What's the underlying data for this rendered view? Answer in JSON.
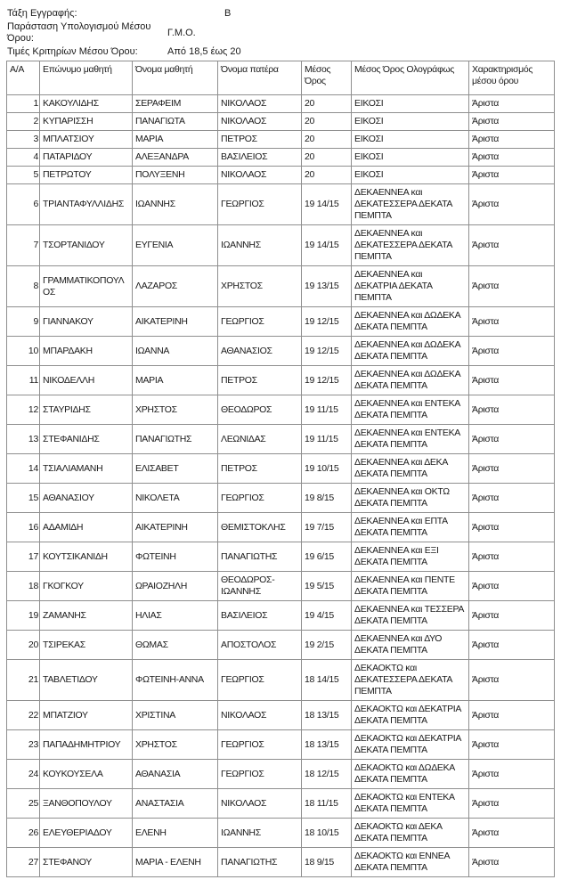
{
  "meta": {
    "registration_class": {
      "label": "Τάξη Εγγραφής:",
      "value": "Β"
    },
    "average_formula": {
      "label": "Παράσταση Υπολογισμού Μέσου Όρου:",
      "value": "Γ.Μ.Ο."
    },
    "criteria_range": {
      "label": "Τιμές Κριτηρίων Μέσου Όρου:",
      "value": "Από 18,5 έως 20"
    }
  },
  "table": {
    "columns": [
      "Α/Α",
      "Επώνυμο μαθητή",
      "Όνομα μαθητή",
      "Όνομα πατέρα",
      "Μέσος Όρος",
      "Μέσος Όρος Ολογράφως",
      "Χαρακτηρισμός μέσου όρου"
    ],
    "rows": [
      [
        "1",
        "ΚΑΚΟΥΛΙΔΗΣ",
        "ΣΕΡΑΦΕΙΜ",
        "ΝΙΚΟΛΑΟΣ",
        "20",
        "ΕΙΚΟΣΙ",
        "Άριστα"
      ],
      [
        "2",
        "ΚΥΠΑΡΙΣΣΗ",
        "ΠΑΝΑΓΙΩΤΑ",
        "ΝΙΚΟΛΑΟΣ",
        "20",
        "ΕΙΚΟΣΙ",
        "Άριστα"
      ],
      [
        "3",
        "ΜΠΛΑΤΣΙΟΥ",
        "ΜΑΡΙΑ",
        "ΠΕΤΡΟΣ",
        "20",
        "ΕΙΚΟΣΙ",
        "Άριστα"
      ],
      [
        "4",
        "ΠΑΤΑΡΙΔΟΥ",
        "ΑΛΕΞΑΝΔΡΑ",
        "ΒΑΣΙΛΕΙΟΣ",
        "20",
        "ΕΙΚΟΣΙ",
        "Άριστα"
      ],
      [
        "5",
        "ΠΕΤΡΩΤΟΥ",
        "ΠΟΛΥΞΕΝΗ",
        "ΝΙΚΟΛΑΟΣ",
        "20",
        "ΕΙΚΟΣΙ",
        "Άριστα"
      ],
      [
        "6",
        "ΤΡΙΑΝΤΑΦΥΛΛΙΔΗΣ",
        "ΙΩΑΝΝΗΣ",
        "ΓΕΩΡΓΙΟΣ",
        "19 14/15",
        "ΔΕΚΑΕΝΝΕΑ και ΔΕΚΑΤΕΣΣΕΡΑ ΔΕΚΑΤΑ ΠΕΜΠΤΑ",
        "Άριστα"
      ],
      [
        "7",
        "ΤΣΟΡΤΑΝΙΔΟΥ",
        "ΕΥΓΕΝΙΑ",
        "ΙΩΑΝΝΗΣ",
        "19 14/15",
        "ΔΕΚΑΕΝΝΕΑ και ΔΕΚΑΤΕΣΣΕΡΑ ΔΕΚΑΤΑ ΠΕΜΠΤΑ",
        "Άριστα"
      ],
      [
        "8",
        "ΓΡΑΜΜΑΤΙΚΟΠΟΥΛΟΣ",
        "ΛΑΖΑΡΟΣ",
        "ΧΡΗΣΤΟΣ",
        "19 13/15",
        "ΔΕΚΑΕΝΝΕΑ και ΔΕΚΑΤΡΙΑ ΔΕΚΑΤΑ ΠΕΜΠΤΑ",
        "Άριστα"
      ],
      [
        "9",
        "ΓΙΑΝΝΑΚΟΥ",
        "ΑΙΚΑΤΕΡΙΝΗ",
        "ΓΕΩΡΓΙΟΣ",
        "19 12/15",
        "ΔΕΚΑΕΝΝΕΑ και ΔΩΔΕΚΑ ΔΕΚΑΤΑ ΠΕΜΠΤΑ",
        "Άριστα"
      ],
      [
        "10",
        "ΜΠΑΡΔΑΚΗ",
        "ΙΩΑΝΝΑ",
        "ΑΘΑΝΑΣΙΟΣ",
        "19 12/15",
        "ΔΕΚΑΕΝΝΕΑ και ΔΩΔΕΚΑ ΔΕΚΑΤΑ ΠΕΜΠΤΑ",
        "Άριστα"
      ],
      [
        "11",
        "ΝΙΚΟΔΕΛΛΗ",
        "ΜΑΡΙΑ",
        "ΠΕΤΡΟΣ",
        "19 12/15",
        "ΔΕΚΑΕΝΝΕΑ και ΔΩΔΕΚΑ ΔΕΚΑΤΑ ΠΕΜΠΤΑ",
        "Άριστα"
      ],
      [
        "12",
        "ΣΤΑΥΡΙΔΗΣ",
        "ΧΡΗΣΤΟΣ",
        "ΘΕΟΔΩΡΟΣ",
        "19 11/15",
        "ΔΕΚΑΕΝΝΕΑ και ΕΝΤΕΚΑ ΔΕΚΑΤΑ ΠΕΜΠΤΑ",
        "Άριστα"
      ],
      [
        "13",
        "ΣΤΕΦΑΝΙΔΗΣ",
        "ΠΑΝΑΓΙΩΤΗΣ",
        "ΛΕΩΝΙΔΑΣ",
        "19 11/15",
        "ΔΕΚΑΕΝΝΕΑ και ΕΝΤΕΚΑ ΔΕΚΑΤΑ ΠΕΜΠΤΑ",
        "Άριστα"
      ],
      [
        "14",
        "ΤΣΙΑΛΙΑΜΑΝΗ",
        "ΕΛΙΣΑΒΕΤ",
        "ΠΕΤΡΟΣ",
        "19 10/15",
        "ΔΕΚΑΕΝΝΕΑ και ΔΕΚΑ ΔΕΚΑΤΑ ΠΕΜΠΤΑ",
        "Άριστα"
      ],
      [
        "15",
        "ΑΘΑΝΑΣΙΟΥ",
        "ΝΙΚΟΛΕΤΑ",
        "ΓΕΩΡΓΙΟΣ",
        "19 8/15",
        "ΔΕΚΑΕΝΝΕΑ και ΟΚΤΩ ΔΕΚΑΤΑ ΠΕΜΠΤΑ",
        "Άριστα"
      ],
      [
        "16",
        "ΑΔΑΜΙΔΗ",
        "ΑΙΚΑΤΕΡΙΝΗ",
        "ΘΕΜΙΣΤΟΚΛΗΣ",
        "19 7/15",
        "ΔΕΚΑΕΝΝΕΑ και ΕΠΤΑ ΔΕΚΑΤΑ ΠΕΜΠΤΑ",
        "Άριστα"
      ],
      [
        "17",
        "ΚΟΥΤΣΙΚΑΝΙΔΗ",
        "ΦΩΤΕΙΝΗ",
        "ΠΑΝΑΓΙΩΤΗΣ",
        "19 6/15",
        "ΔΕΚΑΕΝΝΕΑ και ΕΞΙ ΔΕΚΑΤΑ ΠΕΜΠΤΑ",
        "Άριστα"
      ],
      [
        "18",
        "ΓΚΟΓΚΟΥ",
        "ΩΡΑΙΟΖΗΛΗ",
        "ΘΕΟΔΩΡΟΣ-ΙΩΑΝΝΗΣ",
        "19 5/15",
        "ΔΕΚΑΕΝΝΕΑ και ΠΕΝΤΕ ΔΕΚΑΤΑ ΠΕΜΠΤΑ",
        "Άριστα"
      ],
      [
        "19",
        "ΖΑΜΑΝΗΣ",
        "ΗΛΙΑΣ",
        "ΒΑΣΙΛΕΙΟΣ",
        "19 4/15",
        "ΔΕΚΑΕΝΝΕΑ και ΤΕΣΣΕΡΑ ΔΕΚΑΤΑ ΠΕΜΠΤΑ",
        "Άριστα"
      ],
      [
        "20",
        "ΤΣΙΡΕΚΑΣ",
        "ΘΩΜΑΣ",
        "ΑΠΟΣΤΟΛΟΣ",
        "19 2/15",
        "ΔΕΚΑΕΝΝΕΑ και ΔΥΟ ΔΕΚΑΤΑ ΠΕΜΠΤΑ",
        "Άριστα"
      ],
      [
        "21",
        "ΤΑΒΛΕΤΙΔΟΥ",
        "ΦΩΤΕΙΝΗ-ΑΝΝΑ",
        "ΓΕΩΡΓΙΟΣ",
        "18 14/15",
        "ΔΕΚΑΟΚΤΩ και ΔΕΚΑΤΕΣΣΕΡΑ ΔΕΚΑΤΑ ΠΕΜΠΤΑ",
        "Άριστα"
      ],
      [
        "22",
        "ΜΠΑΤΖΙΟΥ",
        "ΧΡΙΣΤΙΝΑ",
        "ΝΙΚΟΛΑΟΣ",
        "18 13/15",
        "ΔΕΚΑΟΚΤΩ και ΔΕΚΑΤΡΙΑ ΔΕΚΑΤΑ ΠΕΜΠΤΑ",
        "Άριστα"
      ],
      [
        "23",
        "ΠΑΠΑΔΗΜΗΤΡΙΟΥ",
        "ΧΡΗΣΤΟΣ",
        "ΓΕΩΡΓΙΟΣ",
        "18 13/15",
        "ΔΕΚΑΟΚΤΩ και ΔΕΚΑΤΡΙΑ ΔΕΚΑΤΑ ΠΕΜΠΤΑ",
        "Άριστα"
      ],
      [
        "24",
        "ΚΟΥΚΟΥΣΕΛΑ",
        "ΑΘΑΝΑΣΙΑ",
        "ΓΕΩΡΓΙΟΣ",
        "18 12/15",
        "ΔΕΚΑΟΚΤΩ και ΔΩΔΕΚΑ ΔΕΚΑΤΑ ΠΕΜΠΤΑ",
        "Άριστα"
      ],
      [
        "25",
        "ΞΑΝΘΟΠΟΥΛΟΥ",
        "ΑΝΑΣΤΑΣΙΑ",
        "ΝΙΚΟΛΑΟΣ",
        "18 11/15",
        "ΔΕΚΑΟΚΤΩ και ΕΝΤΕΚΑ ΔΕΚΑΤΑ ΠΕΜΠΤΑ",
        "Άριστα"
      ],
      [
        "26",
        "ΕΛΕΥΘΕΡΙΑΔΟΥ",
        "ΕΛΕΝΗ",
        "ΙΩΑΝΝΗΣ",
        "18 10/15",
        "ΔΕΚΑΟΚΤΩ και ΔΕΚΑ ΔΕΚΑΤΑ ΠΕΜΠΤΑ",
        "Άριστα"
      ],
      [
        "27",
        "ΣΤΕΦΑΝΟΥ",
        "ΜΑΡΙΑ - ΕΛΕΝΗ",
        "ΠΑΝΑΓΙΩΤΗΣ",
        "18 9/15",
        "ΔΕΚΑΟΚΤΩ και ΕΝΝΕΑ ΔΕΚΑΤΑ ΠΕΜΠΤΑ",
        "Άριστα"
      ]
    ]
  },
  "colors": {
    "border": "#8f8f8f",
    "text": "#1a1a1a",
    "background": "#ffffff"
  }
}
